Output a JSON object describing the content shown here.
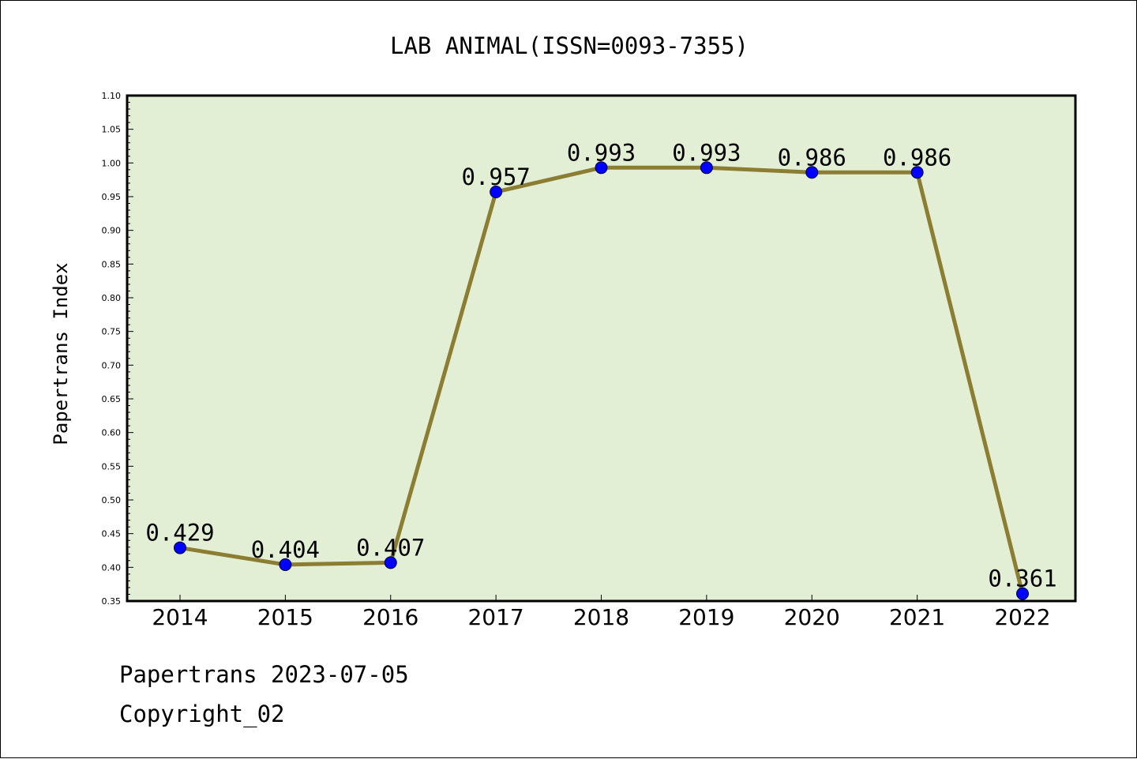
{
  "chart_data": {
    "type": "line",
    "title": "LAB ANIMAL(ISSN=0093-7355)",
    "xlabel": "",
    "ylabel": "Papertrans Index",
    "categories": [
      "2014",
      "2015",
      "2016",
      "2017",
      "2018",
      "2019",
      "2020",
      "2021",
      "2022"
    ],
    "series": [
      {
        "values": [
          0.429,
          0.404,
          0.407,
          0.957,
          0.993,
          0.993,
          0.986,
          0.986,
          0.361
        ],
        "labels": [
          "0.429",
          "0.404",
          "0.407",
          "0.957",
          "0.993",
          "0.993",
          "0.986",
          "0.986",
          "0.361"
        ]
      }
    ],
    "ylim": [
      0.35,
      1.1
    ],
    "yticks": [
      "0.35",
      "0.40",
      "0.45",
      "0.50",
      "0.55",
      "0.60",
      "0.65",
      "0.70",
      "0.75",
      "0.80",
      "0.85",
      "0.90",
      "0.95",
      "1.00",
      "1.05",
      "1.10"
    ],
    "grid": false,
    "colors": {
      "line": "#8b7d32",
      "marker": "#0000ff",
      "plot_bg": "#e2efd5"
    }
  },
  "footer": {
    "date": "Papertrans 2023-07-05",
    "copyright": "Copyright_02"
  }
}
